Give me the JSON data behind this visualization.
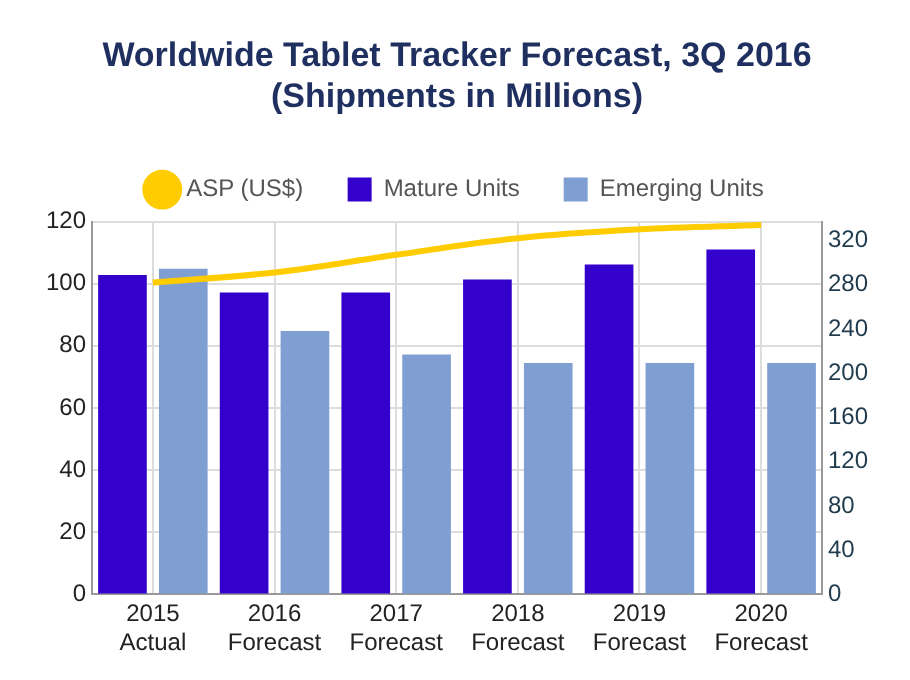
{
  "chart_data": {
    "type": "bar",
    "title": [
      "Worldwide Tablet Tracker Forecast, 3Q 2016",
      "(Shipments in Millions)"
    ],
    "categories": [
      "2015\nActual",
      "2016\nForecast",
      "2017\nForecast",
      "2018\nForecast",
      "2019\nForecast",
      "2020\nForecast"
    ],
    "series": [
      {
        "name": "Mature Units",
        "color": "#3300cc",
        "values": [
          102.8,
          97.2,
          97.2,
          101.4,
          106.2,
          111
        ]
      },
      {
        "name": "Emerging Units",
        "color": "#7f9ed2",
        "values": [
          104.8,
          84.8,
          77.2,
          74.5,
          74.5,
          74.5
        ]
      },
      {
        "name": "ASP (US$)",
        "type": "line",
        "axis": "y2",
        "color": "#ffcc00",
        "values": [
          282,
          291,
          307,
          322,
          330,
          334
        ]
      }
    ],
    "ylim": [
      0,
      120
    ],
    "yticks": [
      0,
      20,
      40,
      60,
      80,
      100,
      120
    ],
    "y2lim": [
      0,
      337
    ],
    "y2ticks": [
      0,
      40,
      80,
      120,
      160,
      200,
      240,
      280,
      320
    ],
    "grid": true,
    "legend": "top",
    "marker": "none"
  }
}
